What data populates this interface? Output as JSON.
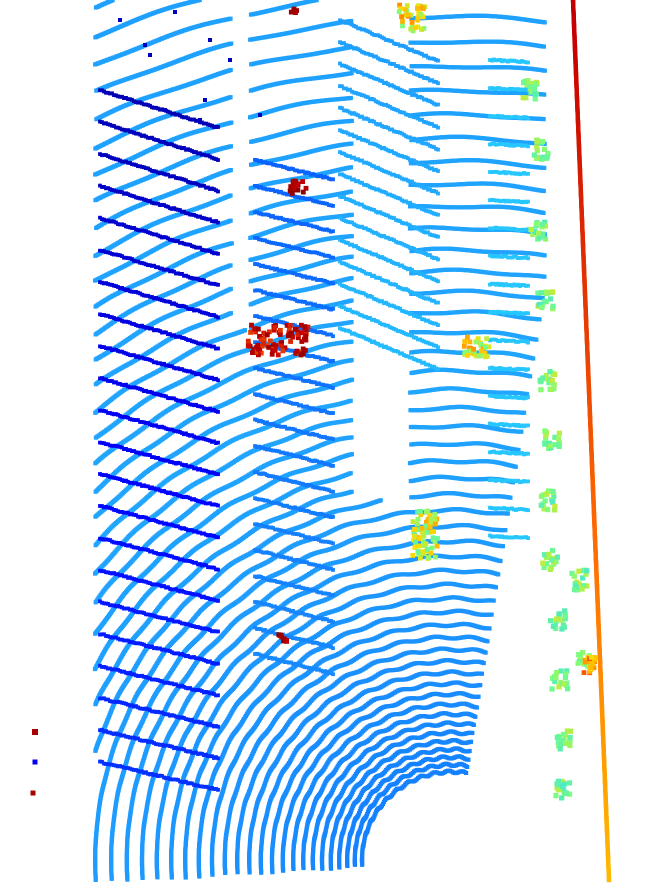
{
  "scene": {
    "kind": "lidar-point-cloud-birds-eye-view",
    "background_color": "#ffffff",
    "colormap": "jet",
    "colormap_stops": [
      "#00008b",
      "#0000ff",
      "#0a64ff",
      "#1e9bff",
      "#28d2ff",
      "#78ff82",
      "#ffdc00",
      "#ff6a00",
      "#c80000",
      "#8b0000"
    ],
    "elements": [
      "ground-scan-rings",
      "road-boundary-wall",
      "vehicle-clusters",
      "vegetation-clusters"
    ]
  }
}
